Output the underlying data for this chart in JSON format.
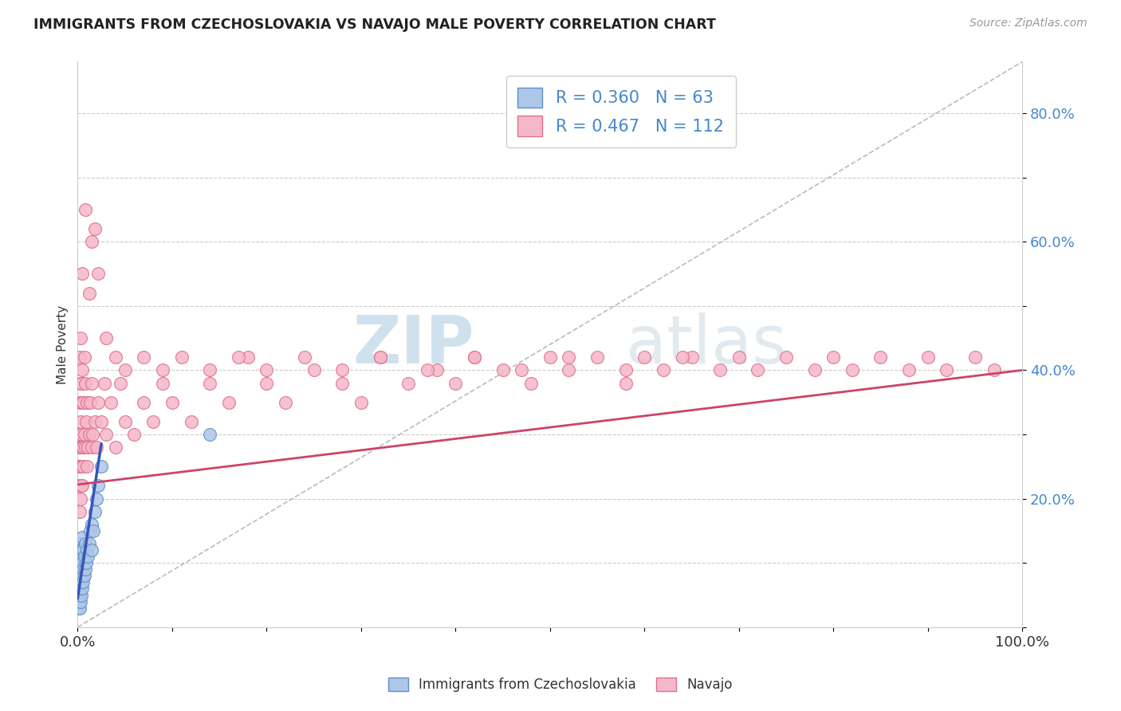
{
  "title": "IMMIGRANTS FROM CZECHOSLOVAKIA VS NAVAJO MALE POVERTY CORRELATION CHART",
  "source_text": "Source: ZipAtlas.com",
  "ylabel": "Male Poverty",
  "xlim": [
    0,
    1.0
  ],
  "ylim": [
    0,
    0.88
  ],
  "blue_color": "#aec6e8",
  "pink_color": "#f5b8c8",
  "blue_edge": "#6090c8",
  "pink_edge": "#e07090",
  "blue_line_color": "#3355bb",
  "pink_line_color": "#cc4466",
  "legend_R_blue": "0.360",
  "legend_N_blue": "63",
  "legend_R_pink": "0.467",
  "legend_N_pink": "112",
  "watermark_zip": "ZIP",
  "watermark_atlas": "atlas",
  "blue_label": "Immigrants from Czechoslovakia",
  "pink_label": "Navajo",
  "blue_scatter_x": [
    0.0005,
    0.0007,
    0.0008,
    0.001,
    0.001,
    0.0012,
    0.0015,
    0.0015,
    0.0015,
    0.0015,
    0.0015,
    0.0015,
    0.0015,
    0.0015,
    0.0015,
    0.002,
    0.002,
    0.002,
    0.002,
    0.002,
    0.002,
    0.002,
    0.002,
    0.002,
    0.0025,
    0.0025,
    0.003,
    0.003,
    0.003,
    0.003,
    0.003,
    0.003,
    0.003,
    0.004,
    0.004,
    0.004,
    0.004,
    0.004,
    0.004,
    0.005,
    0.005,
    0.005,
    0.005,
    0.006,
    0.006,
    0.006,
    0.007,
    0.007,
    0.008,
    0.008,
    0.009,
    0.01,
    0.011,
    0.012,
    0.013,
    0.015,
    0.015,
    0.017,
    0.018,
    0.02,
    0.022,
    0.025,
    0.14
  ],
  "blue_scatter_y": [
    0.05,
    0.04,
    0.06,
    0.03,
    0.05,
    0.07,
    0.04,
    0.06,
    0.08,
    0.05,
    0.07,
    0.09,
    0.06,
    0.08,
    0.1,
    0.03,
    0.05,
    0.07,
    0.09,
    0.11,
    0.06,
    0.08,
    0.1,
    0.13,
    0.05,
    0.08,
    0.04,
    0.06,
    0.08,
    0.1,
    0.12,
    0.07,
    0.09,
    0.05,
    0.07,
    0.09,
    0.11,
    0.08,
    0.12,
    0.06,
    0.08,
    0.1,
    0.14,
    0.07,
    0.09,
    0.12,
    0.08,
    0.11,
    0.09,
    0.13,
    0.1,
    0.12,
    0.11,
    0.13,
    0.15,
    0.12,
    0.16,
    0.15,
    0.18,
    0.2,
    0.22,
    0.25,
    0.3
  ],
  "pink_scatter_x": [
    0.001,
    0.001,
    0.001,
    0.002,
    0.002,
    0.002,
    0.002,
    0.002,
    0.003,
    0.003,
    0.003,
    0.003,
    0.003,
    0.004,
    0.004,
    0.004,
    0.004,
    0.005,
    0.005,
    0.005,
    0.005,
    0.006,
    0.006,
    0.006,
    0.007,
    0.007,
    0.008,
    0.008,
    0.009,
    0.01,
    0.01,
    0.011,
    0.012,
    0.013,
    0.015,
    0.015,
    0.016,
    0.018,
    0.02,
    0.022,
    0.025,
    0.028,
    0.03,
    0.035,
    0.04,
    0.045,
    0.05,
    0.06,
    0.07,
    0.08,
    0.09,
    0.1,
    0.12,
    0.14,
    0.16,
    0.18,
    0.2,
    0.22,
    0.25,
    0.28,
    0.3,
    0.32,
    0.35,
    0.38,
    0.4,
    0.42,
    0.45,
    0.48,
    0.5,
    0.52,
    0.55,
    0.58,
    0.6,
    0.62,
    0.65,
    0.68,
    0.7,
    0.72,
    0.75,
    0.78,
    0.8,
    0.82,
    0.85,
    0.88,
    0.9,
    0.92,
    0.95,
    0.97,
    0.005,
    0.008,
    0.012,
    0.015,
    0.018,
    0.022,
    0.03,
    0.04,
    0.05,
    0.07,
    0.09,
    0.11,
    0.14,
    0.17,
    0.2,
    0.24,
    0.28,
    0.32,
    0.37,
    0.42,
    0.47,
    0.52,
    0.58,
    0.64
  ],
  "pink_scatter_y": [
    0.3,
    0.22,
    0.25,
    0.18,
    0.28,
    0.35,
    0.42,
    0.25,
    0.2,
    0.32,
    0.38,
    0.28,
    0.45,
    0.22,
    0.3,
    0.38,
    0.25,
    0.28,
    0.35,
    0.22,
    0.4,
    0.28,
    0.35,
    0.25,
    0.3,
    0.42,
    0.28,
    0.38,
    0.32,
    0.25,
    0.35,
    0.28,
    0.3,
    0.35,
    0.28,
    0.38,
    0.3,
    0.32,
    0.28,
    0.35,
    0.32,
    0.38,
    0.3,
    0.35,
    0.28,
    0.38,
    0.32,
    0.3,
    0.35,
    0.32,
    0.38,
    0.35,
    0.32,
    0.38,
    0.35,
    0.42,
    0.38,
    0.35,
    0.4,
    0.38,
    0.35,
    0.42,
    0.38,
    0.4,
    0.38,
    0.42,
    0.4,
    0.38,
    0.42,
    0.4,
    0.42,
    0.38,
    0.42,
    0.4,
    0.42,
    0.4,
    0.42,
    0.4,
    0.42,
    0.4,
    0.42,
    0.4,
    0.42,
    0.4,
    0.42,
    0.4,
    0.42,
    0.4,
    0.55,
    0.65,
    0.52,
    0.6,
    0.62,
    0.55,
    0.45,
    0.42,
    0.4,
    0.42,
    0.4,
    0.42,
    0.4,
    0.42,
    0.4,
    0.42,
    0.4,
    0.42,
    0.4,
    0.42,
    0.4,
    0.42,
    0.4,
    0.42
  ]
}
